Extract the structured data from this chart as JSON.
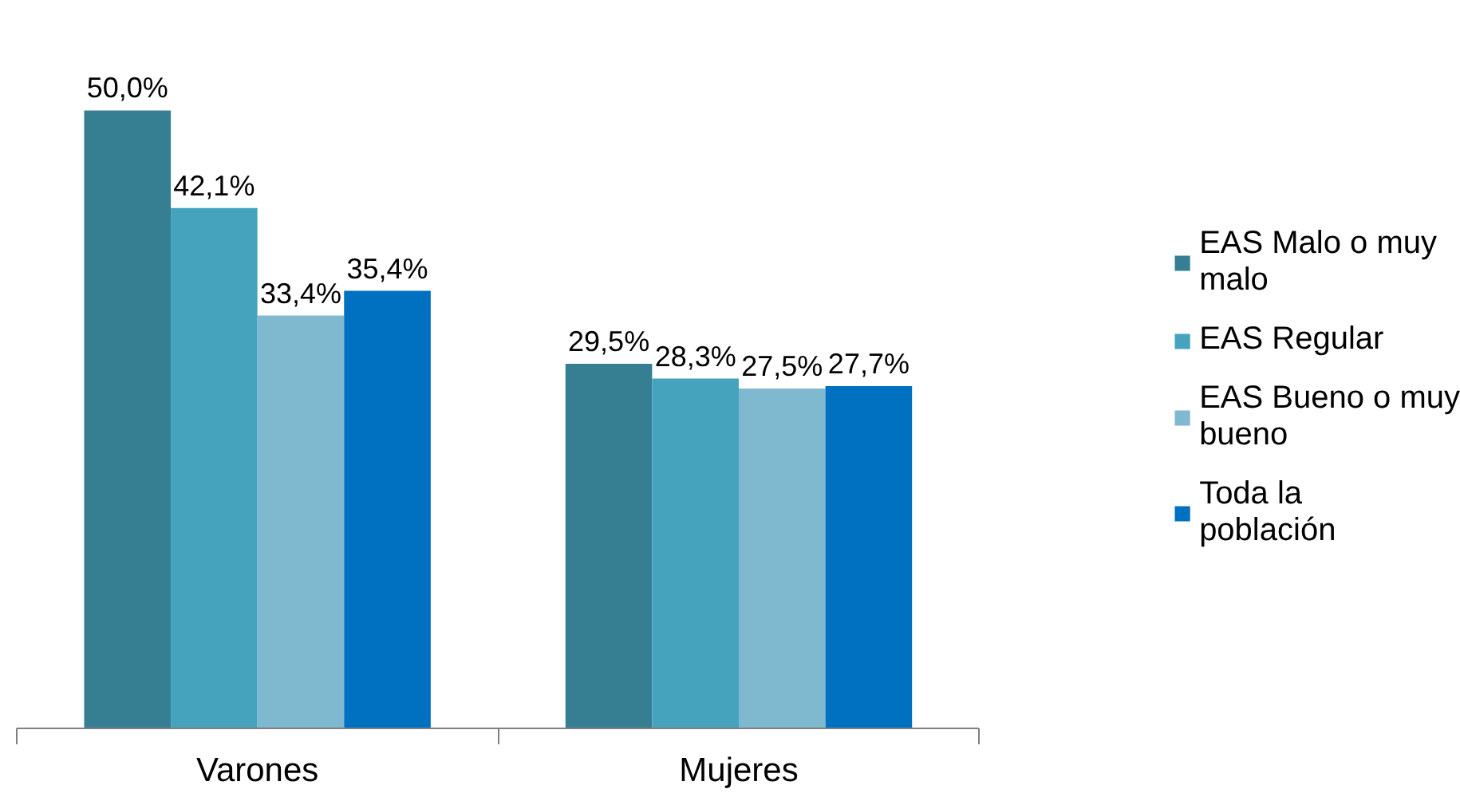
{
  "chart_data": {
    "type": "bar",
    "categories": [
      "Varones",
      "Mujeres"
    ],
    "legend": "right",
    "series": [
      {
        "name": "EAS Malo o muy malo",
        "color": "#367f93",
        "values": [
          50.0,
          29.5
        ],
        "value_labels": [
          "50,0%",
          "29,5%"
        ]
      },
      {
        "name": "EAS Regular",
        "color": "#46a3bd",
        "values": [
          42.1,
          28.3
        ],
        "value_labels": [
          "42,1%",
          "28,3%"
        ]
      },
      {
        "name": "EAS Bueno o muy bueno",
        "color": "#7fb9cf",
        "values": [
          33.4,
          27.5
        ],
        "value_labels": [
          "33,4%",
          "27,5%"
        ]
      },
      {
        "name": "Toda la población",
        "color": "#0070c0",
        "values": [
          35.4,
          27.7
        ],
        "value_labels": [
          "35,4%",
          "27,7%"
        ]
      }
    ]
  }
}
